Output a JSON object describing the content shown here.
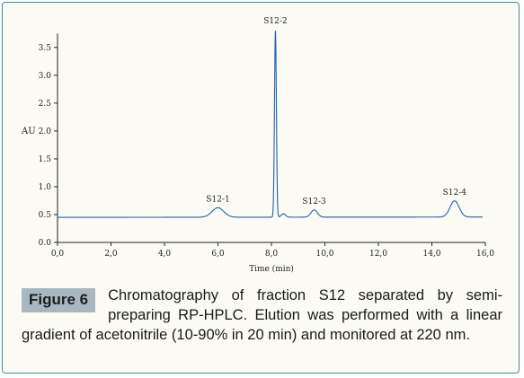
{
  "figure": {
    "label": "Figure 6",
    "caption": "Chromatography of fraction S12 separated by semi-preparing RP-HPLC. Elution was performed with a linear gradient of acetonitrile (10-90% in 20 min) and monitored at 220 nm."
  },
  "chart_data": {
    "type": "line",
    "title": "",
    "xlabel": "Time (min)",
    "ylabel": "AU",
    "xlim": [
      0,
      16
    ],
    "ylim": [
      0,
      3.9
    ],
    "x_ticks": [
      "0,0",
      "2,0",
      "4,0",
      "6,0",
      "8,0",
      "10,0",
      "12,0",
      "14,0",
      "16,0"
    ],
    "y_ticks": [
      {
        "value": 0.0,
        "label": "0.0"
      },
      {
        "value": 0.5,
        "label": "0.5"
      },
      {
        "value": 1.0,
        "label": "1.0"
      },
      {
        "value": 1.5,
        "label": "1.5"
      },
      {
        "value": 2.0,
        "label": "2.0"
      },
      {
        "value": 2.5,
        "label": "2.5"
      },
      {
        "value": 3.0,
        "label": "3.0"
      },
      {
        "value": 3.5,
        "label": "3.5"
      }
    ],
    "baseline": 0.45,
    "peaks": [
      {
        "label": "S12-1",
        "x": 6.0,
        "y": 0.62
      },
      {
        "label": "S12-2",
        "x": 8.15,
        "y": 3.82
      },
      {
        "label": "S12-3",
        "x": 9.6,
        "y": 0.58
      },
      {
        "label": "S12-4",
        "x": 14.85,
        "y": 0.74
      }
    ],
    "line_color": "#1f5fb5",
    "grid": false
  }
}
